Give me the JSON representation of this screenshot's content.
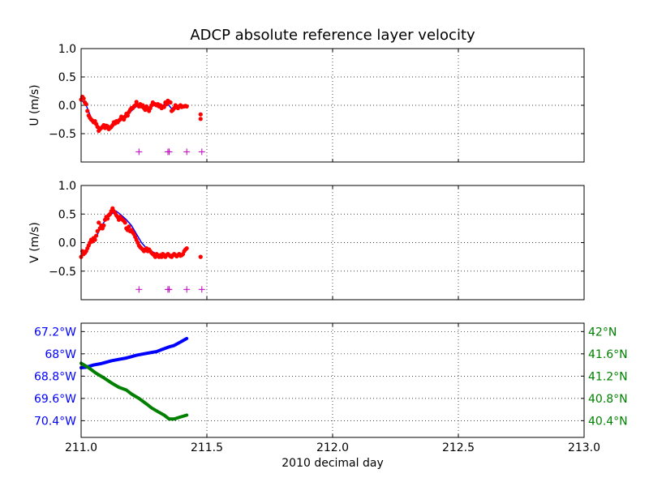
{
  "title": "ADCP absolute reference layer velocity",
  "colors": {
    "axis": "#000000",
    "grid": "#000000",
    "raw_points": "#ff0000",
    "smoothed_line": "#0000ff",
    "flag_markers": "#bf00bf",
    "longitude": "#0000ff",
    "latitude": "#008000"
  },
  "chart_data": [
    {
      "type": "scatter",
      "panel": "U",
      "ylabel": "U (m/s)",
      "xlim": [
        211.0,
        213.0
      ],
      "ylim": [
        -1.0,
        1.0
      ],
      "yticks": [
        1.0,
        0.5,
        0.0,
        -0.5
      ],
      "ytick_labels": [
        "1.0",
        "0.5",
        "0.0",
        "−0.5"
      ],
      "grid": true,
      "flag_y": -0.82,
      "flag_x": [
        211.23,
        211.345,
        211.35,
        211.42,
        211.48
      ],
      "raw_x": [
        211.0,
        211.005,
        211.01,
        211.015,
        211.02,
        211.025,
        211.03,
        211.035,
        211.04,
        211.045,
        211.05,
        211.055,
        211.06,
        211.065,
        211.07,
        211.075,
        211.08,
        211.085,
        211.09,
        211.095,
        211.1,
        211.105,
        211.11,
        211.115,
        211.12,
        211.125,
        211.13,
        211.135,
        211.14,
        211.145,
        211.15,
        211.155,
        211.16,
        211.165,
        211.17,
        211.175,
        211.18,
        211.185,
        211.19,
        211.195,
        211.2,
        211.205,
        211.21,
        211.215,
        211.22,
        211.225,
        211.23,
        211.235,
        211.24,
        211.245,
        211.25,
        211.255,
        211.26,
        211.265,
        211.27,
        211.275,
        211.28,
        211.285,
        211.29,
        211.295,
        211.3,
        211.305,
        211.31,
        211.315,
        211.32,
        211.325,
        211.33,
        211.335,
        211.34,
        211.345,
        211.35,
        211.355,
        211.36,
        211.365,
        211.37,
        211.375,
        211.38,
        211.385,
        211.39,
        211.395,
        211.4,
        211.405,
        211.41,
        211.415,
        211.42,
        211.475,
        211.475
      ],
      "raw_y": [
        0.1,
        0.15,
        0.12,
        0.05,
        0.02,
        -0.1,
        -0.18,
        -0.22,
        -0.25,
        -0.27,
        -0.3,
        -0.28,
        -0.33,
        -0.38,
        -0.45,
        -0.42,
        -0.4,
        -0.38,
        -0.35,
        -0.4,
        -0.36,
        -0.37,
        -0.42,
        -0.4,
        -0.38,
        -0.35,
        -0.3,
        -0.32,
        -0.28,
        -0.3,
        -0.27,
        -0.25,
        -0.2,
        -0.22,
        -0.25,
        -0.2,
        -0.15,
        -0.18,
        -0.12,
        -0.08,
        -0.05,
        -0.05,
        -0.02,
        0.0,
        0.06,
        0.0,
        -0.02,
        0.02,
        -0.02,
        0.0,
        -0.05,
        -0.08,
        -0.02,
        -0.06,
        -0.1,
        -0.05,
        0.0,
        0.05,
        0.02,
        0.02,
        0.0,
        0.02,
        -0.02,
        0.0,
        -0.05,
        -0.02,
        -0.03,
        0.05,
        0.02,
        0.08,
        0.06,
        0.05,
        -0.1,
        -0.08,
        -0.05,
        0.0,
        -0.02,
        -0.05,
        -0.02,
        0.0,
        -0.03,
        -0.02,
        -0.02,
        -0.01,
        -0.02,
        -0.16,
        -0.24
      ],
      "smooth_x": [
        211.0,
        211.02,
        211.04,
        211.06,
        211.08,
        211.1,
        211.12,
        211.14,
        211.16,
        211.18,
        211.2,
        211.22,
        211.24,
        211.26,
        211.28,
        211.3,
        211.32,
        211.34,
        211.36,
        211.38,
        211.4,
        211.42
      ],
      "smooth_y": [
        0.1,
        0.0,
        -0.22,
        -0.32,
        -0.42,
        -0.38,
        -0.4,
        -0.3,
        -0.26,
        -0.2,
        -0.1,
        -0.02,
        -0.02,
        -0.04,
        -0.02,
        0.02,
        -0.02,
        0.05,
        -0.06,
        -0.02,
        -0.02,
        -0.02
      ]
    },
    {
      "type": "scatter",
      "panel": "V",
      "ylabel": "V (m/s)",
      "xlim": [
        211.0,
        213.0
      ],
      "ylim": [
        -1.0,
        1.0
      ],
      "yticks": [
        1.0,
        0.5,
        0.0,
        -0.5
      ],
      "ytick_labels": [
        "1.0",
        "0.5",
        "0.0",
        "−0.5"
      ],
      "grid": true,
      "flag_y": -0.82,
      "flag_x": [
        211.23,
        211.345,
        211.35,
        211.42,
        211.48
      ],
      "raw_x": [
        211.0,
        211.005,
        211.01,
        211.015,
        211.02,
        211.025,
        211.03,
        211.035,
        211.04,
        211.045,
        211.05,
        211.055,
        211.06,
        211.065,
        211.07,
        211.075,
        211.08,
        211.085,
        211.09,
        211.095,
        211.1,
        211.105,
        211.11,
        211.115,
        211.12,
        211.125,
        211.13,
        211.135,
        211.14,
        211.145,
        211.15,
        211.155,
        211.16,
        211.165,
        211.17,
        211.175,
        211.18,
        211.185,
        211.19,
        211.195,
        211.2,
        211.205,
        211.21,
        211.215,
        211.22,
        211.225,
        211.23,
        211.235,
        211.24,
        211.245,
        211.25,
        211.255,
        211.26,
        211.265,
        211.27,
        211.275,
        211.28,
        211.285,
        211.29,
        211.295,
        211.3,
        211.305,
        211.31,
        211.315,
        211.32,
        211.325,
        211.33,
        211.335,
        211.34,
        211.345,
        211.35,
        211.355,
        211.36,
        211.365,
        211.37,
        211.375,
        211.38,
        211.385,
        211.39,
        211.395,
        211.4,
        211.405,
        211.41,
        211.415,
        211.42,
        211.475
      ],
      "raw_y": [
        -0.25,
        -0.15,
        -0.2,
        -0.18,
        -0.15,
        -0.1,
        -0.05,
        0.0,
        0.05,
        0.02,
        0.08,
        0.05,
        0.12,
        0.2,
        0.35,
        0.25,
        0.3,
        0.25,
        0.3,
        0.4,
        0.45,
        0.42,
        0.48,
        0.5,
        0.55,
        0.6,
        0.55,
        0.52,
        0.48,
        0.45,
        0.4,
        0.45,
        0.42,
        0.4,
        0.38,
        0.35,
        0.25,
        0.22,
        0.28,
        0.2,
        0.22,
        0.18,
        0.15,
        0.1,
        0.05,
        0.0,
        -0.05,
        -0.08,
        -0.1,
        -0.12,
        -0.15,
        -0.12,
        -0.1,
        -0.15,
        -0.12,
        -0.15,
        -0.18,
        -0.2,
        -0.22,
        -0.25,
        -0.2,
        -0.22,
        -0.25,
        -0.22,
        -0.25,
        -0.2,
        -0.22,
        -0.25,
        -0.22,
        -0.2,
        -0.22,
        -0.24,
        -0.25,
        -0.22,
        -0.2,
        -0.22,
        -0.24,
        -0.22,
        -0.2,
        -0.23,
        -0.22,
        -0.2,
        -0.15,
        -0.12,
        -0.1,
        -0.25
      ],
      "smooth_x": [
        211.0,
        211.02,
        211.04,
        211.06,
        211.08,
        211.1,
        211.12,
        211.14,
        211.16,
        211.18,
        211.2,
        211.22,
        211.24,
        211.26,
        211.28,
        211.3,
        211.32,
        211.34,
        211.36,
        211.38,
        211.4,
        211.42
      ],
      "smooth_y": [
        -0.2,
        -0.15,
        0.0,
        0.1,
        0.28,
        0.42,
        0.5,
        0.55,
        0.48,
        0.4,
        0.3,
        0.15,
        0.0,
        -0.1,
        -0.15,
        -0.2,
        -0.22,
        -0.22,
        -0.22,
        -0.22,
        -0.2,
        -0.12
      ]
    },
    {
      "type": "line",
      "panel": "position",
      "xlabel": "2010 decimal day",
      "xlim": [
        211.0,
        213.0
      ],
      "xticks": [
        211.0,
        211.5,
        212.0,
        212.5,
        213.0
      ],
      "xtick_labels": [
        "211.0",
        "211.5",
        "212.0",
        "212.5",
        "213.0"
      ],
      "grid": true,
      "left_axis": {
        "ylim": [
          -71.0,
          -66.9
        ],
        "yticks": [
          -67.2,
          -68.0,
          -68.8,
          -69.6,
          -70.4
        ],
        "ytick_labels": [
          "67.2°W",
          "68°W",
          "68.8°W",
          "69.6°W",
          "70.4°W"
        ]
      },
      "right_axis": {
        "ylim": [
          40.1,
          42.15
        ],
        "yticks": [
          42.0,
          41.6,
          41.2,
          40.8,
          40.4
        ],
        "ytick_labels": [
          "42°N",
          "41.6°N",
          "41.2°N",
          "40.8°N",
          "40.4°N"
        ]
      },
      "series": [
        {
          "axis": "left",
          "x": [
            211.0,
            211.02,
            211.05,
            211.08,
            211.1,
            211.12,
            211.15,
            211.18,
            211.2,
            211.22,
            211.25,
            211.28,
            211.3,
            211.32,
            211.35,
            211.37,
            211.4,
            211.42
          ],
          "values": [
            -68.5,
            -68.48,
            -68.4,
            -68.35,
            -68.3,
            -68.25,
            -68.2,
            -68.15,
            -68.1,
            -68.05,
            -68.0,
            -67.95,
            -67.92,
            -67.85,
            -67.75,
            -67.7,
            -67.55,
            -67.45
          ]
        },
        {
          "axis": "right",
          "x": [
            211.0,
            211.03,
            211.06,
            211.09,
            211.12,
            211.15,
            211.18,
            211.2,
            211.23,
            211.26,
            211.28,
            211.31,
            211.33,
            211.35,
            211.37,
            211.39,
            211.42
          ],
          "values": [
            41.43,
            41.35,
            41.25,
            41.17,
            41.08,
            41.0,
            40.95,
            40.88,
            40.8,
            40.7,
            40.63,
            40.55,
            40.5,
            40.43,
            40.43,
            40.46,
            40.5
          ]
        }
      ]
    }
  ]
}
